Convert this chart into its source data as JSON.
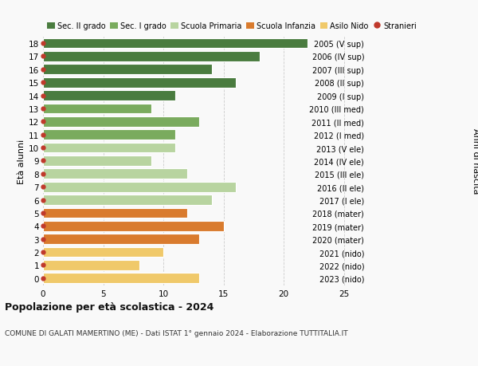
{
  "ages": [
    18,
    17,
    16,
    15,
    14,
    13,
    12,
    11,
    10,
    9,
    8,
    7,
    6,
    5,
    4,
    3,
    2,
    1,
    0
  ],
  "values": [
    22,
    18,
    14,
    16,
    11,
    9,
    13,
    11,
    11,
    9,
    12,
    16,
    14,
    12,
    15,
    13,
    10,
    8,
    13
  ],
  "right_labels": [
    "2005 (V sup)",
    "2006 (IV sup)",
    "2007 (III sup)",
    "2008 (II sup)",
    "2009 (I sup)",
    "2010 (III med)",
    "2011 (II med)",
    "2012 (I med)",
    "2013 (V ele)",
    "2014 (IV ele)",
    "2015 (III ele)",
    "2016 (II ele)",
    "2017 (I ele)",
    "2018 (mater)",
    "2019 (mater)",
    "2020 (mater)",
    "2021 (nido)",
    "2022 (nido)",
    "2023 (nido)"
  ],
  "bar_colors": [
    "#4a7c3f",
    "#4a7c3f",
    "#4a7c3f",
    "#4a7c3f",
    "#4a7c3f",
    "#7aab5e",
    "#7aab5e",
    "#7aab5e",
    "#b8d4a0",
    "#b8d4a0",
    "#b8d4a0",
    "#b8d4a0",
    "#b8d4a0",
    "#d97b2e",
    "#d97b2e",
    "#d97b2e",
    "#f0c96a",
    "#f0c96a",
    "#f0c96a"
  ],
  "legend_labels": [
    "Sec. II grado",
    "Sec. I grado",
    "Scuola Primaria",
    "Scuola Infanzia",
    "Asilo Nido",
    "Stranieri"
  ],
  "legend_colors": [
    "#4a7c3f",
    "#7aab5e",
    "#b8d4a0",
    "#d97b2e",
    "#f0c96a",
    "#c0392b"
  ],
  "title": "Popolazione per età scolastica - 2024",
  "subtitle": "COMUNE DI GALATI MAMERTINO (ME) - Dati ISTAT 1° gennaio 2024 - Elaborazione TUTTITALIA.IT",
  "ylabel": "Età alunni",
  "right_ylabel": "Anni di nascita",
  "xlim": [
    0,
    27
  ],
  "xticks": [
    0,
    5,
    10,
    15,
    20,
    25
  ],
  "background_color": "#f9f9f9",
  "dot_color": "#c0392b",
  "grid_color": "#cccccc",
  "bar_height": 0.78
}
